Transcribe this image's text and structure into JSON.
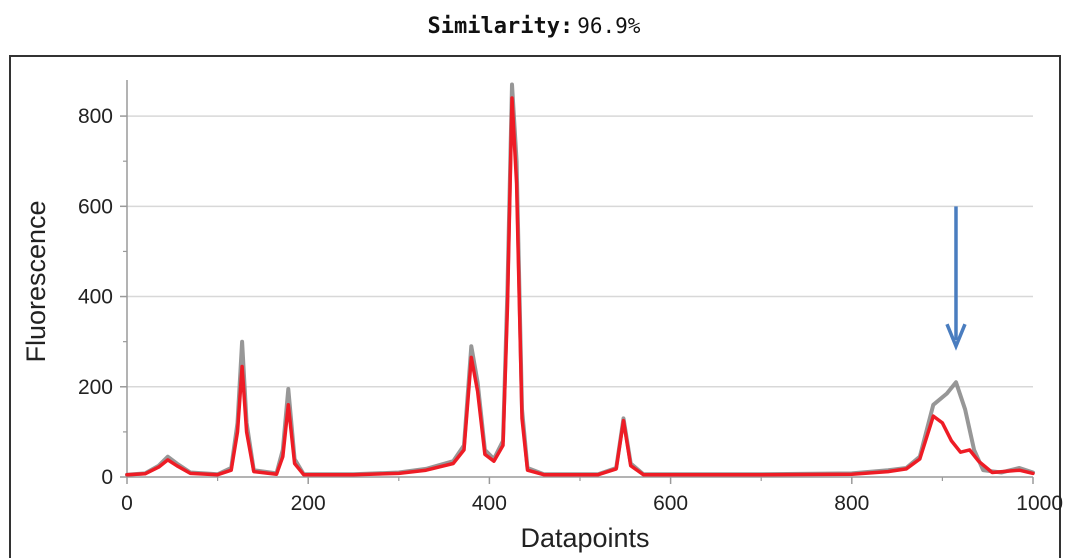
{
  "header": {
    "similarity_label": "Similarity:",
    "similarity_value": "96.9%"
  },
  "chart_data": {
    "type": "line",
    "title": "",
    "xlabel": "Datapoints",
    "ylabel": "Fluorescence",
    "xlim": [
      0,
      1000
    ],
    "ylim": [
      0,
      880
    ],
    "x_ticks": [
      "0",
      "200",
      "400",
      "600",
      "800",
      "1000"
    ],
    "y_ticks": [
      "0",
      "200",
      "400",
      "600",
      "800"
    ],
    "grid": true,
    "series": [
      {
        "color": "#8c8c8c",
        "points": [
          [
            0,
            5
          ],
          [
            20,
            8
          ],
          [
            35,
            25
          ],
          [
            45,
            45
          ],
          [
            55,
            30
          ],
          [
            70,
            10
          ],
          [
            100,
            6
          ],
          [
            115,
            20
          ],
          [
            122,
            120
          ],
          [
            127,
            300
          ],
          [
            132,
            120
          ],
          [
            140,
            15
          ],
          [
            165,
            8
          ],
          [
            172,
            60
          ],
          [
            178,
            195
          ],
          [
            185,
            40
          ],
          [
            195,
            6
          ],
          [
            250,
            6
          ],
          [
            300,
            10
          ],
          [
            330,
            18
          ],
          [
            360,
            35
          ],
          [
            372,
            70
          ],
          [
            380,
            290
          ],
          [
            387,
            210
          ],
          [
            395,
            60
          ],
          [
            405,
            40
          ],
          [
            415,
            80
          ],
          [
            420,
            420
          ],
          [
            425,
            870
          ],
          [
            430,
            700
          ],
          [
            436,
            150
          ],
          [
            442,
            20
          ],
          [
            460,
            6
          ],
          [
            520,
            6
          ],
          [
            540,
            20
          ],
          [
            548,
            130
          ],
          [
            556,
            30
          ],
          [
            570,
            6
          ],
          [
            700,
            6
          ],
          [
            800,
            8
          ],
          [
            840,
            15
          ],
          [
            860,
            20
          ],
          [
            875,
            45
          ],
          [
            890,
            160
          ],
          [
            905,
            185
          ],
          [
            915,
            210
          ],
          [
            925,
            150
          ],
          [
            935,
            60
          ],
          [
            945,
            15
          ],
          [
            965,
            10
          ],
          [
            985,
            20
          ],
          [
            1000,
            10
          ]
        ]
      },
      {
        "color": "#ee1c25",
        "points": [
          [
            0,
            5
          ],
          [
            20,
            7
          ],
          [
            35,
            22
          ],
          [
            45,
            38
          ],
          [
            55,
            25
          ],
          [
            70,
            8
          ],
          [
            100,
            5
          ],
          [
            115,
            15
          ],
          [
            122,
            100
          ],
          [
            127,
            245
          ],
          [
            132,
            100
          ],
          [
            140,
            12
          ],
          [
            165,
            6
          ],
          [
            172,
            45
          ],
          [
            178,
            160
          ],
          [
            185,
            30
          ],
          [
            195,
            5
          ],
          [
            250,
            5
          ],
          [
            300,
            8
          ],
          [
            330,
            15
          ],
          [
            360,
            30
          ],
          [
            372,
            60
          ],
          [
            380,
            265
          ],
          [
            387,
            190
          ],
          [
            395,
            50
          ],
          [
            405,
            35
          ],
          [
            415,
            70
          ],
          [
            420,
            380
          ],
          [
            425,
            840
          ],
          [
            430,
            650
          ],
          [
            436,
            130
          ],
          [
            442,
            15
          ],
          [
            460,
            5
          ],
          [
            520,
            5
          ],
          [
            540,
            18
          ],
          [
            548,
            125
          ],
          [
            556,
            25
          ],
          [
            570,
            5
          ],
          [
            700,
            5
          ],
          [
            800,
            6
          ],
          [
            840,
            12
          ],
          [
            860,
            18
          ],
          [
            875,
            40
          ],
          [
            890,
            135
          ],
          [
            900,
            120
          ],
          [
            910,
            80
          ],
          [
            920,
            55
          ],
          [
            930,
            60
          ],
          [
            940,
            35
          ],
          [
            955,
            10
          ],
          [
            985,
            15
          ],
          [
            1000,
            8
          ]
        ]
      }
    ],
    "annotations": [
      {
        "type": "arrow",
        "color": "#4a7dbf",
        "x": 915,
        "y_start": 600,
        "y_end": 290
      }
    ]
  }
}
